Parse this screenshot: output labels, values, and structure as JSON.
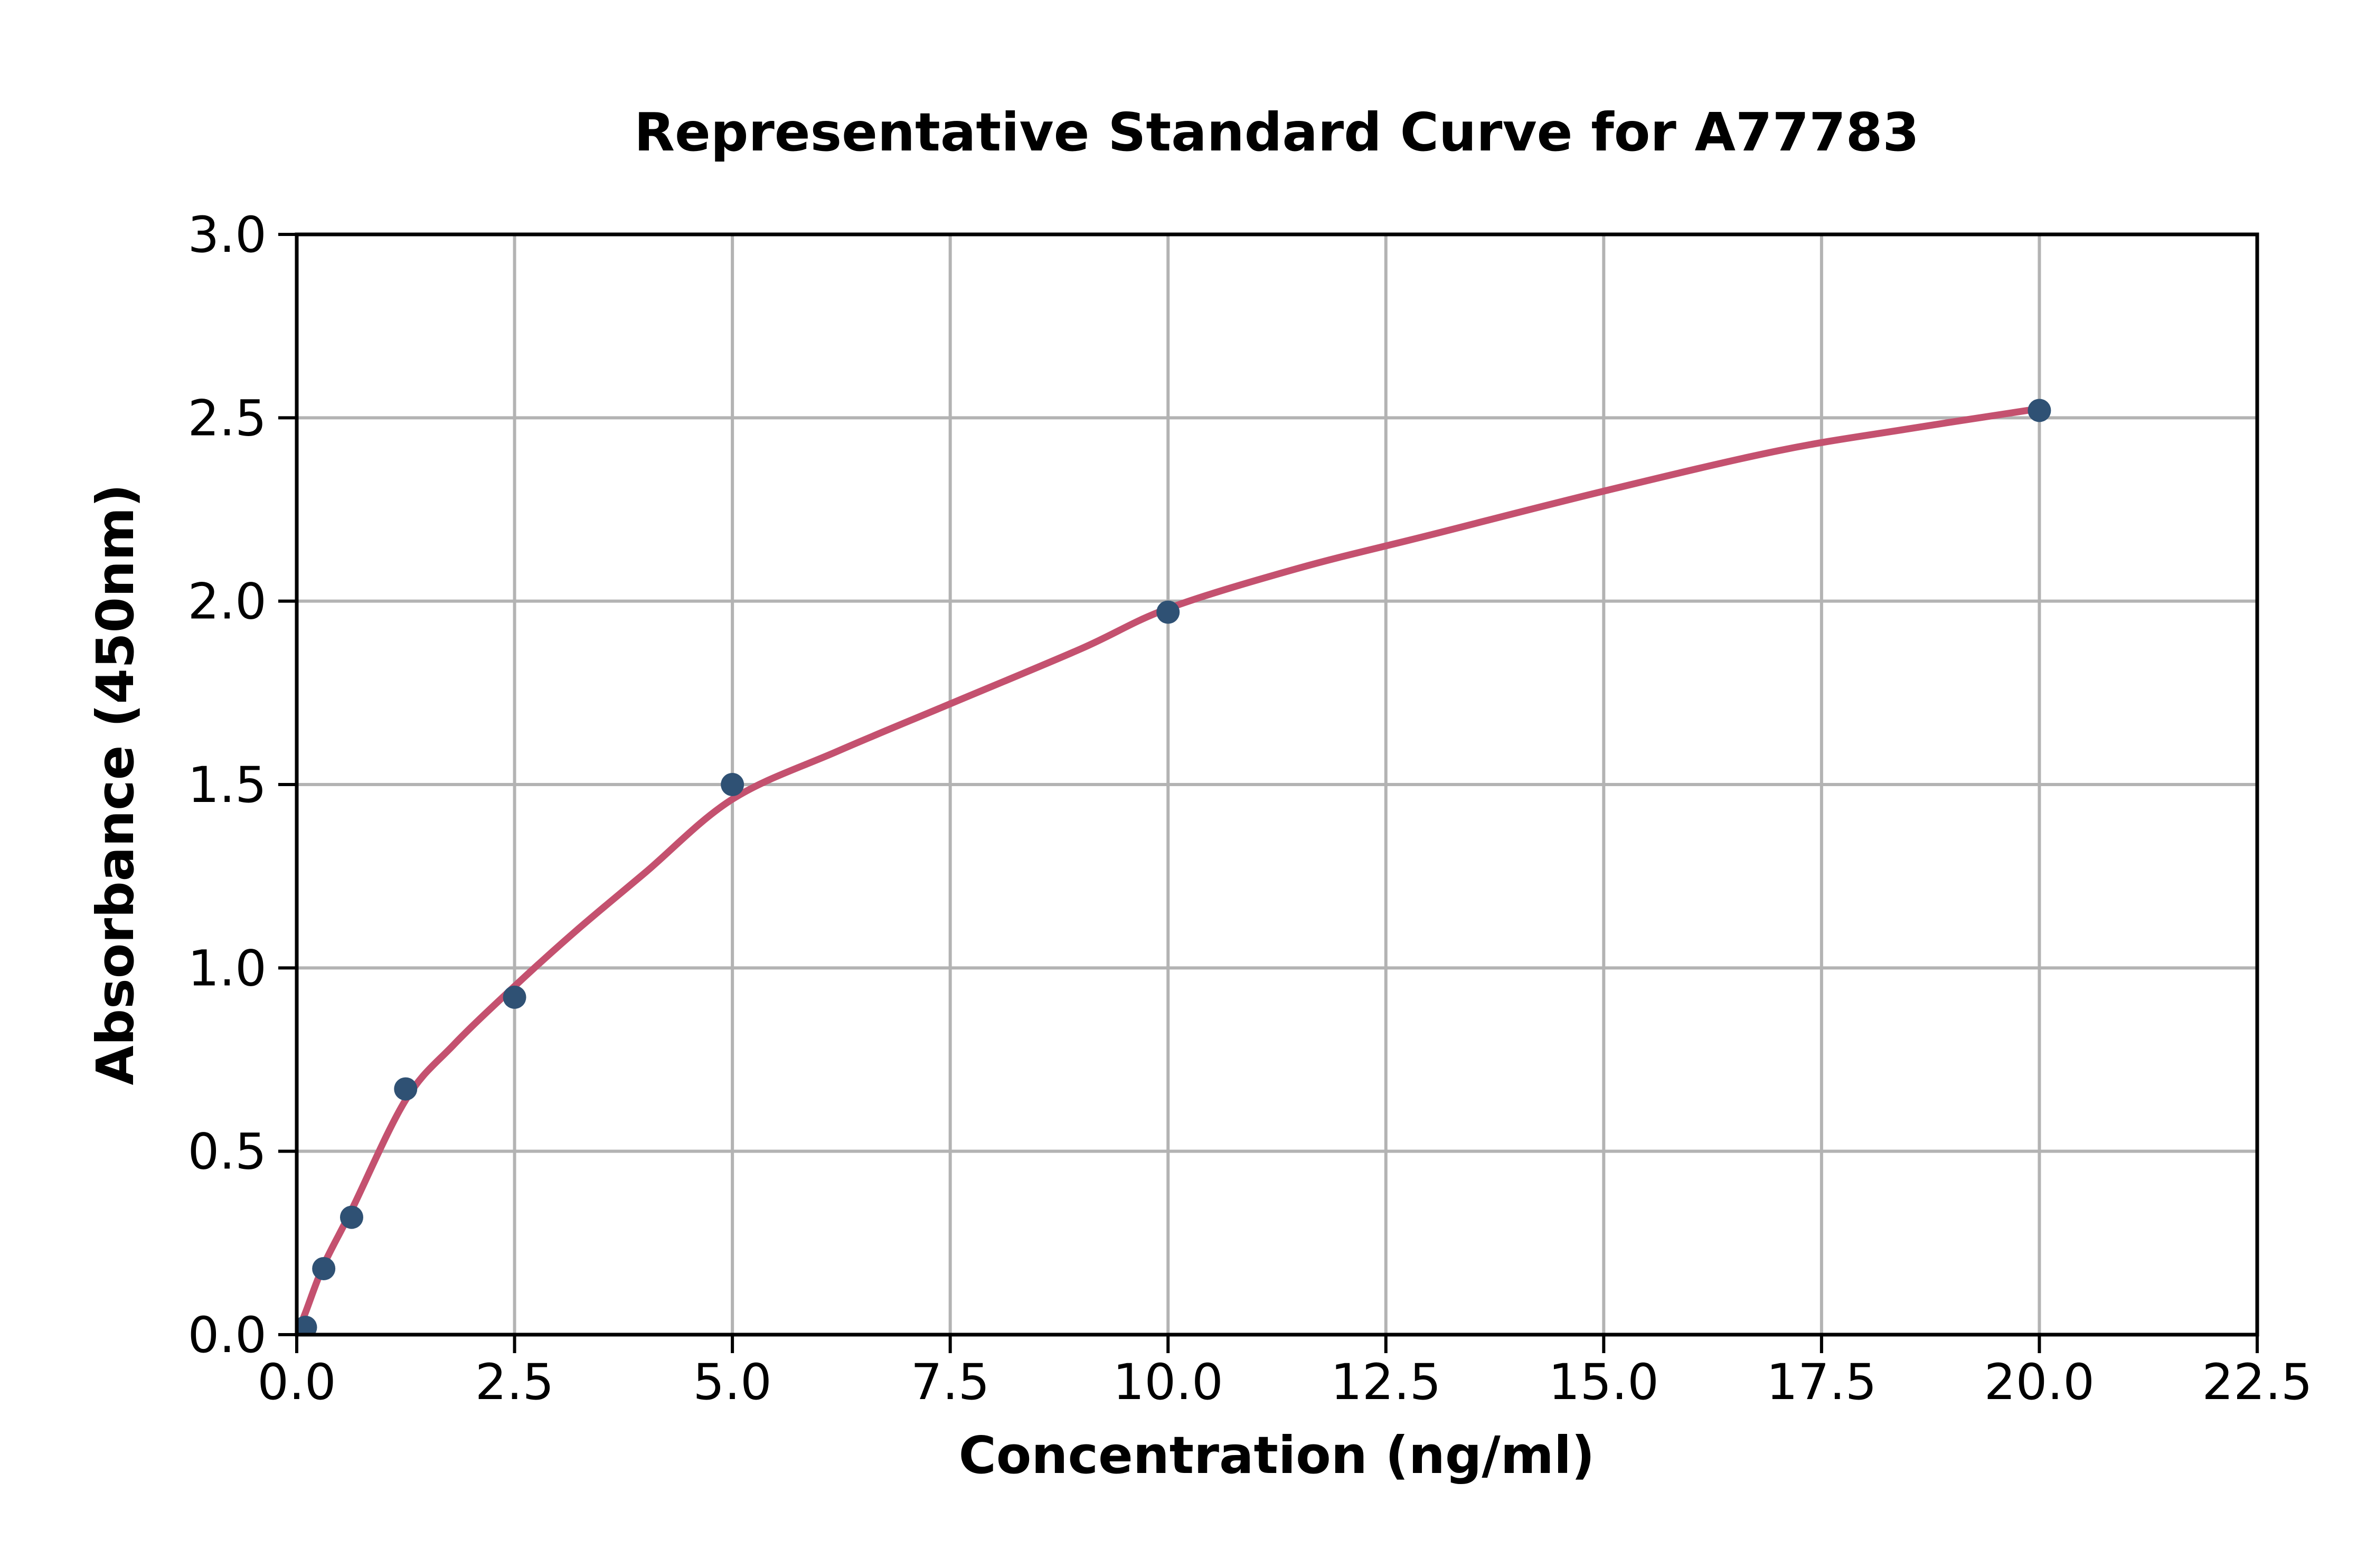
{
  "chart_data": {
    "type": "scatter",
    "title": "Representative Standard Curve for A77783",
    "xlabel": "Concentration (ng/ml)",
    "ylabel": "Absorbance (450nm)",
    "xlim": [
      0,
      22.5
    ],
    "ylim": [
      0,
      3.0
    ],
    "grid": true,
    "legend": "none",
    "x_ticks": {
      "values": [
        0,
        2.5,
        5,
        7.5,
        10,
        12.5,
        15,
        17.5,
        20,
        22.5
      ],
      "labels": [
        "0.0",
        "2.5",
        "5.0",
        "7.5",
        "10.0",
        "12.5",
        "15.0",
        "17.5",
        "20.0",
        "22.5"
      ]
    },
    "y_ticks": {
      "values": [
        0,
        0.5,
        1,
        1.5,
        2,
        2.5,
        3
      ],
      "labels": [
        "0.0",
        "0.5",
        "1.0",
        "1.5",
        "2.0",
        "2.5",
        "3.0"
      ]
    },
    "series": [
      {
        "name": "standard-points",
        "type": "scatter",
        "color": "#2F5174",
        "points": [
          {
            "x": 0.1,
            "y": 0.02
          },
          {
            "x": 0.31,
            "y": 0.18
          },
          {
            "x": 0.63,
            "y": 0.32
          },
          {
            "x": 1.25,
            "y": 0.67
          },
          {
            "x": 2.5,
            "y": 0.92
          },
          {
            "x": 5,
            "y": 1.5
          },
          {
            "x": 10,
            "y": 1.97
          },
          {
            "x": 20,
            "y": 2.52
          }
        ]
      },
      {
        "name": "fitted-curve",
        "type": "line",
        "color": "#C4516F",
        "points": [
          {
            "x": 0,
            "y": 0.0
          },
          {
            "x": 0.1,
            "y": 0.06
          },
          {
            "x": 0.31,
            "y": 0.19
          },
          {
            "x": 0.63,
            "y": 0.34
          },
          {
            "x": 1.25,
            "y": 0.64
          },
          {
            "x": 1.8,
            "y": 0.79
          },
          {
            "x": 2.5,
            "y": 0.95
          },
          {
            "x": 3.2,
            "y": 1.1
          },
          {
            "x": 4,
            "y": 1.26
          },
          {
            "x": 5,
            "y": 1.46
          },
          {
            "x": 6.2,
            "y": 1.59
          },
          {
            "x": 7.5,
            "y": 1.72
          },
          {
            "x": 9,
            "y": 1.87
          },
          {
            "x": 10,
            "y": 1.98
          },
          {
            "x": 11.5,
            "y": 2.09
          },
          {
            "x": 13,
            "y": 2.18
          },
          {
            "x": 15,
            "y": 2.3
          },
          {
            "x": 17,
            "y": 2.41
          },
          {
            "x": 18.5,
            "y": 2.47
          },
          {
            "x": 20,
            "y": 2.525
          }
        ]
      }
    ],
    "colors": {
      "grid": "#B3B3B3",
      "axis": "#000000",
      "text": "#000000",
      "background": "#FFFFFF"
    }
  }
}
